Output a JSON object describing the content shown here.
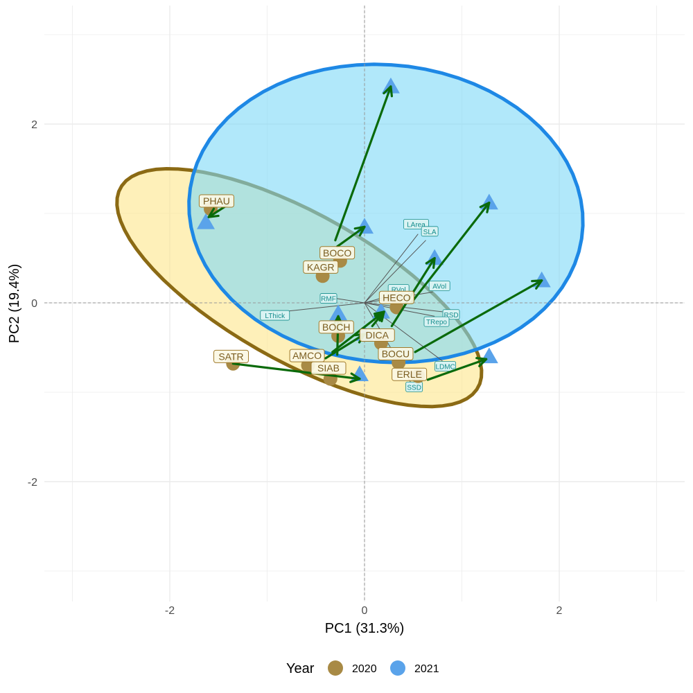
{
  "chart_data": {
    "type": "scatter",
    "title": "",
    "xlabel": "PC1 (31.3%)",
    "ylabel": "PC2 (19.4%)",
    "xlim": [
      -3.3,
      3.3
    ],
    "ylim": [
      -3.1,
      3.2
    ],
    "x_ticks": [
      -2,
      0,
      2
    ],
    "y_ticks": [
      -2,
      0,
      2
    ],
    "x_tick_labels": [
      "-2",
      "0",
      "2"
    ],
    "y_tick_labels": [
      "-2",
      "0",
      "2"
    ],
    "grid": true,
    "zero_lines": true,
    "legend": {
      "title": "Year",
      "position": "bottom",
      "entries": [
        {
          "label": "2020",
          "color": "#a88a45"
        },
        {
          "label": "2021",
          "color": "#5aa3ea"
        }
      ]
    },
    "colors": {
      "year_2020": "#a88a45",
      "year_2021": "#5aa3ea",
      "ellipse_2020_fill": "#fde68a",
      "ellipse_2020_stroke": "#8b6a14",
      "ellipse_2021_fill": "#7dd8f7",
      "ellipse_2021_stroke": "#1e88e5",
      "arrow": "#0a6a0a",
      "loading_line": "#555555",
      "label_text_2020": "#7a5c1e",
      "trait_text": "#138c8c"
    },
    "ellipses": [
      {
        "name": "2020",
        "cx": -0.67,
        "cy": 0.17,
        "rx": 2.15,
        "ry": 0.81,
        "angle_deg": -32
      },
      {
        "name": "2021",
        "cx": 0.22,
        "cy": 1.0,
        "rx": 2.03,
        "ry": 1.66,
        "angle_deg": -8
      }
    ],
    "series": [
      {
        "name": "2020",
        "marker": "circle",
        "points": [
          {
            "label": "PHAU",
            "x": -1.58,
            "y": 1.05
          },
          {
            "label": "BOCO",
            "x": -0.25,
            "y": 0.47
          },
          {
            "label": "KAGR",
            "x": -0.43,
            "y": 0.3
          },
          {
            "label": "BOCH",
            "x": -0.27,
            "y": -0.37
          },
          {
            "label": "HECO",
            "x": 0.33,
            "y": -0.05
          },
          {
            "label": "DICA",
            "x": 0.17,
            "y": -0.45
          },
          {
            "label": "BOCU",
            "x": 0.35,
            "y": -0.67
          },
          {
            "label": "SATR",
            "x": -1.35,
            "y": -0.68
          },
          {
            "label": "AMCO",
            "x": -0.58,
            "y": -0.7
          },
          {
            "label": "SIAB",
            "x": -0.35,
            "y": -0.85
          },
          {
            "label": "ERLE",
            "x": 0.55,
            "y": -0.82
          }
        ]
      },
      {
        "name": "2021",
        "marker": "triangle",
        "points": [
          {
            "label": "PHAU",
            "x": -1.63,
            "y": 0.9
          },
          {
            "label": "BOCO",
            "x": 0.0,
            "y": 0.85
          },
          {
            "label": "KAGR",
            "x": 0.27,
            "y": 2.42
          },
          {
            "label": "BOCH",
            "x": -0.27,
            "y": -0.12
          },
          {
            "label": "HECO",
            "x": 1.28,
            "y": 1.12
          },
          {
            "label": "DICA",
            "x": 0.17,
            "y": -0.1
          },
          {
            "label": "BOCU",
            "x": 1.82,
            "y": 0.25
          },
          {
            "label": "SATR",
            "x": -0.05,
            "y": -0.8
          },
          {
            "label": "AMCO",
            "x": 0.72,
            "y": 0.5
          },
          {
            "label": "SIAB",
            "x": 0.0,
            "y": -0.35
          },
          {
            "label": "ERLE",
            "x": 1.28,
            "y": -0.6
          }
        ]
      }
    ],
    "observation_labels": [
      {
        "text": "PHAU",
        "x": -1.52,
        "y": 1.14
      },
      {
        "text": "BOCO",
        "x": -0.28,
        "y": 0.56
      },
      {
        "text": "KAGR",
        "x": -0.45,
        "y": 0.4
      },
      {
        "text": "HECO",
        "x": 0.33,
        "y": 0.06
      },
      {
        "text": "BOCH",
        "x": -0.29,
        "y": -0.27
      },
      {
        "text": "DICA",
        "x": 0.13,
        "y": -0.36
      },
      {
        "text": "BOCU",
        "x": 0.32,
        "y": -0.57
      },
      {
        "text": "SATR",
        "x": -1.37,
        "y": -0.6
      },
      {
        "text": "AMCO",
        "x": -0.59,
        "y": -0.59
      },
      {
        "text": "SIAB",
        "x": -0.37,
        "y": -0.73
      },
      {
        "text": "ERLE",
        "x": 0.46,
        "y": -0.8
      }
    ],
    "loadings": [
      {
        "name": "LArea",
        "x": 0.55,
        "y": 0.77,
        "label_x": 0.53,
        "label_y": 0.88
      },
      {
        "name": "SLA",
        "x": 0.63,
        "y": 0.7,
        "label_x": 0.67,
        "label_y": 0.8
      },
      {
        "name": "RVol",
        "x": 0.33,
        "y": 0.1,
        "label_x": 0.35,
        "label_y": 0.15
      },
      {
        "name": "AVol",
        "x": 0.7,
        "y": 0.12,
        "label_x": 0.77,
        "label_y": 0.19
      },
      {
        "name": "RMF",
        "x": -0.3,
        "y": 0.05,
        "label_x": -0.37,
        "label_y": 0.05
      },
      {
        "name": "LThick",
        "x": -0.85,
        "y": -0.1,
        "label_x": -0.92,
        "label_y": -0.14
      },
      {
        "name": "RSD",
        "x": 0.8,
        "y": -0.1,
        "label_x": 0.89,
        "label_y": -0.13
      },
      {
        "name": "TRepo",
        "x": 0.72,
        "y": -0.15,
        "label_x": 0.74,
        "label_y": -0.21
      },
      {
        "name": "LDMC",
        "x": 0.8,
        "y": -0.65,
        "label_x": 0.83,
        "label_y": -0.71
      },
      {
        "name": "SSD",
        "x": 0.48,
        "y": -0.9,
        "label_x": 0.51,
        "label_y": -0.94
      }
    ],
    "change_arrows": [
      {
        "from": [
          -1.4,
          1.1
        ],
        "to": [
          -1.6,
          0.96
        ]
      },
      {
        "from": [
          -0.28,
          0.63
        ],
        "to": [
          0.0,
          0.85
        ]
      },
      {
        "from": [
          -0.3,
          0.7
        ],
        "to": [
          0.27,
          2.42
        ]
      },
      {
        "from": [
          -0.28,
          -0.58
        ],
        "to": [
          -0.27,
          -0.15
        ]
      },
      {
        "from": [
          0.48,
          0.0
        ],
        "to": [
          1.28,
          1.12
        ]
      },
      {
        "from": [
          0.28,
          -0.26
        ],
        "to": [
          0.72,
          0.5
        ]
      },
      {
        "from": [
          0.08,
          -0.26
        ],
        "to": [
          0.2,
          -0.1
        ]
      },
      {
        "from": [
          -0.33,
          -0.55
        ],
        "to": [
          0.2,
          -0.1
        ]
      },
      {
        "from": [
          0.52,
          -0.55
        ],
        "to": [
          1.82,
          0.25
        ]
      },
      {
        "from": [
          -0.4,
          -0.62
        ],
        "to": [
          0.0,
          -0.35
        ]
      },
      {
        "from": [
          -1.35,
          -0.68
        ],
        "to": [
          -0.05,
          -0.85
        ]
      },
      {
        "from": [
          0.65,
          -0.86
        ],
        "to": [
          1.25,
          -0.63
        ]
      }
    ]
  }
}
